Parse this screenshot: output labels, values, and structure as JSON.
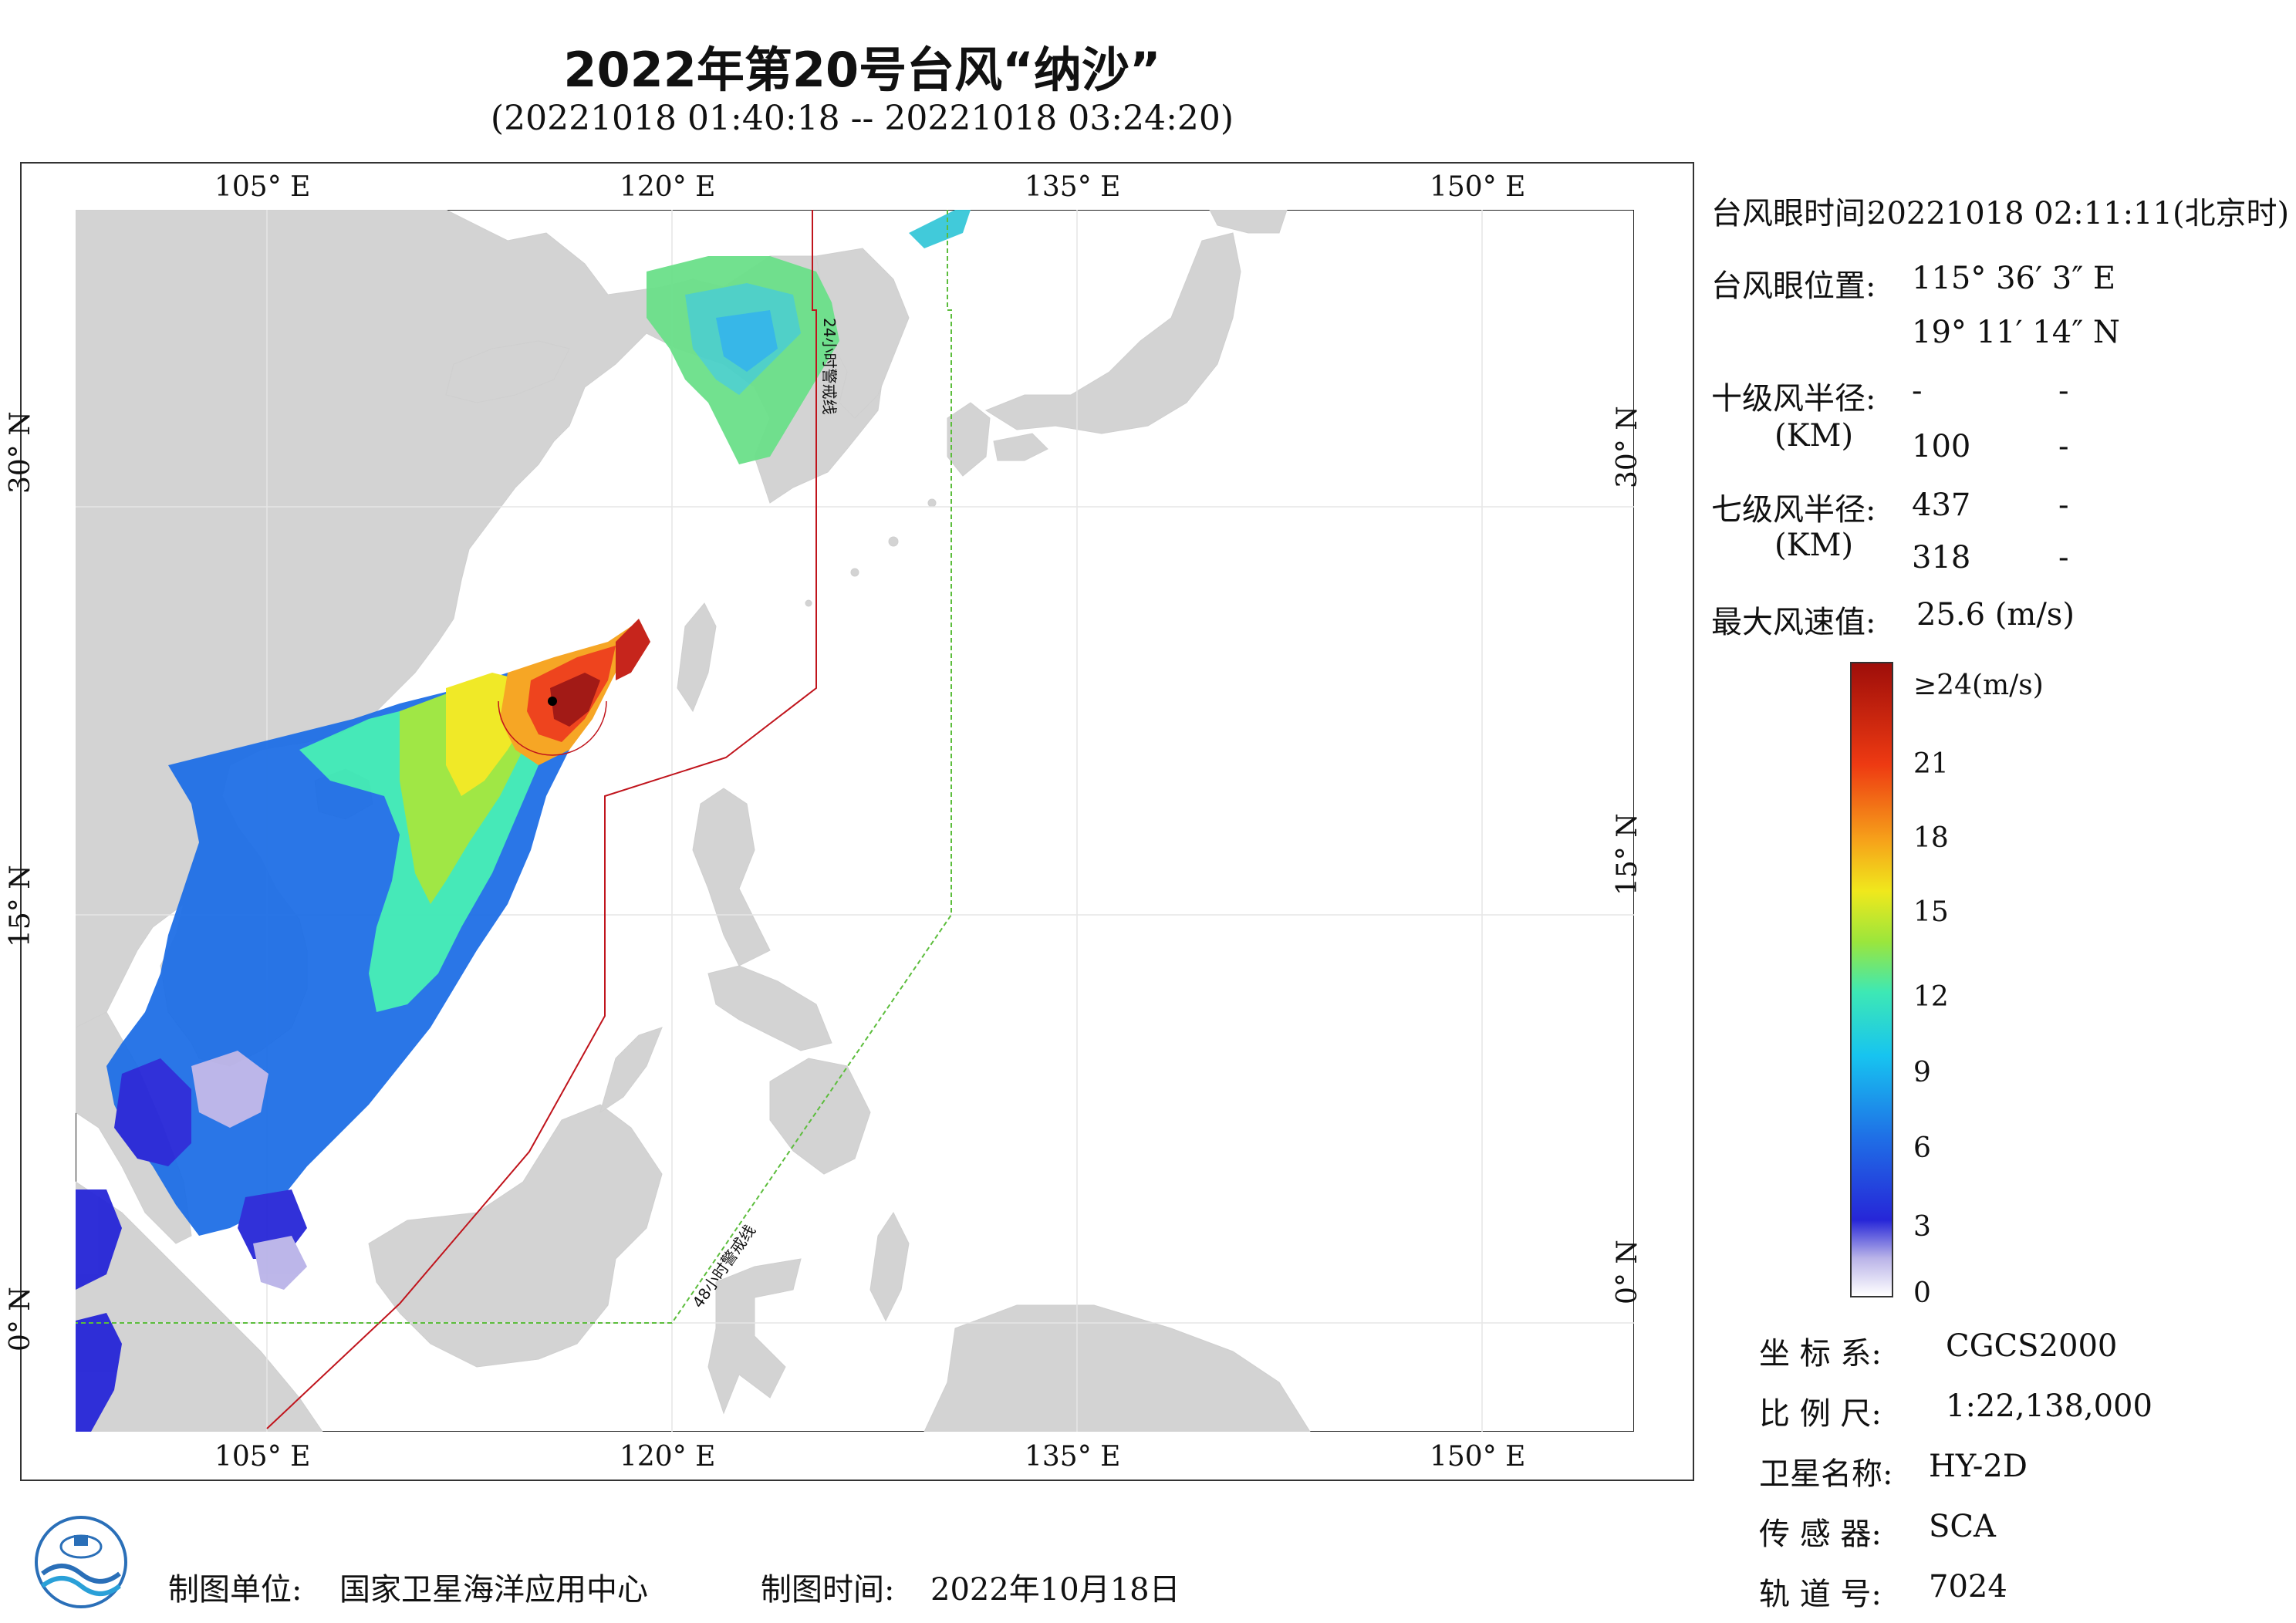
{
  "title": "2022年第20号台风“纳沙”",
  "subtitle": "(20221018 01:40:18 -- 20221018 03:24:20)",
  "map": {
    "lon_labels_top": [
      "105° E",
      "120° E",
      "135° E",
      "150° E"
    ],
    "lon_labels_bottom": [
      "105° E",
      "120° E",
      "135° E",
      "150° E"
    ],
    "lat_labels_left": [
      "30° N",
      "15° N",
      "0° N"
    ],
    "lat_labels_right": [
      "30° N",
      "15° N",
      "0° N"
    ],
    "warning_24h": "24小时警戒线",
    "warning_48h": "48小时警戒线",
    "extent": {
      "lon_min": 98,
      "lon_max": 155,
      "lat_min": -4,
      "lat_max": 41
    },
    "typhoon_eye": {
      "lon": 115.6,
      "lat": 19.19
    },
    "colors": {
      "land": "#d3d3d3",
      "warning_24h": "#c0141c",
      "warning_48h": "#5cbd3c"
    }
  },
  "info": {
    "eye_time_label": "台风眼时间:",
    "eye_time_value": "20221018 02:11:11(北京时)",
    "eye_pos_label": "台风眼位置:",
    "eye_lon": "115° 36′ 3″ E",
    "eye_lat": "19° 11′ 14″ N",
    "r10_label": "十级风半径:",
    "r10_unit": "(KM)",
    "r10_row1": [
      "-",
      "-"
    ],
    "r10_row2": [
      "100",
      "-"
    ],
    "r7_label": "七级风半径:",
    "r7_unit": "(KM)",
    "r7_row1": [
      "437",
      "-"
    ],
    "r7_row2": [
      "318",
      "-"
    ],
    "max_wind_label": "最大风速值:",
    "max_wind_value": "25.6  (m/s)"
  },
  "colorbar": {
    "top_label": "≥24(m/s)",
    "ticks": [
      "21",
      "18",
      "15",
      "12",
      "9",
      "6",
      "3",
      "0"
    ],
    "range": [
      0,
      24
    ],
    "colors": [
      "#ffffff",
      "#b9b3e8",
      "#2626d8",
      "#1f6fe6",
      "#17c4f0",
      "#3de8b5",
      "#9be63c",
      "#f0e81c",
      "#f6a21a",
      "#ee3a12",
      "#9e0e0a"
    ]
  },
  "meta": {
    "crs_label": "坐 标 系:",
    "crs_value": "CGCS2000",
    "scale_label": "比 例 尺:",
    "scale_value": "1:22,138,000",
    "satellite_label": "卫星名称:",
    "satellite_value": "HY-2D",
    "sensor_label": "传 感 器:",
    "sensor_value": "SCA",
    "orbit_label": "轨 道 号:",
    "orbit_value": "7024"
  },
  "footer": {
    "producer_label": "制图单位:",
    "producer_value": "国家卫星海洋应用中心",
    "date_label": "制图时间:",
    "date_value": "2022年10月18日"
  }
}
